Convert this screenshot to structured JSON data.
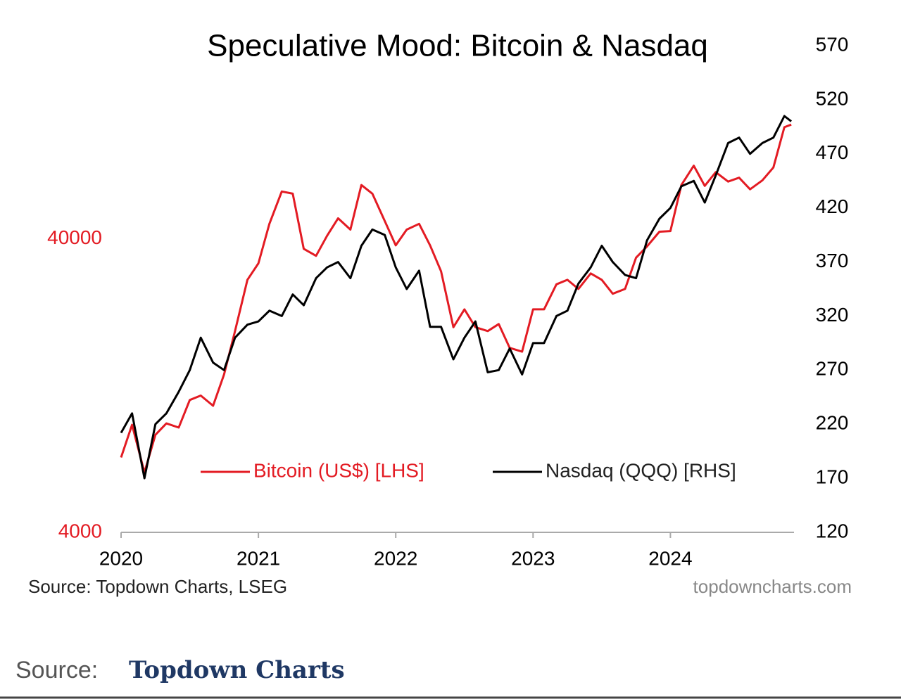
{
  "chart_data": {
    "type": "line",
    "title": "Speculative Mood: Bitcoin & Nasdaq",
    "source": "Source: Topdown Charts, LSEG",
    "watermark": "topdowncharts.com",
    "x": [
      2020.0,
      2020.08,
      2020.17,
      2020.25,
      2020.33,
      2020.42,
      2020.5,
      2020.58,
      2020.67,
      2020.75,
      2020.83,
      2020.92,
      2021.0,
      2021.08,
      2021.17,
      2021.25,
      2021.33,
      2021.42,
      2021.5,
      2021.58,
      2021.67,
      2021.75,
      2021.83,
      2021.92,
      2022.0,
      2022.08,
      2022.17,
      2022.25,
      2022.33,
      2022.42,
      2022.5,
      2022.58,
      2022.67,
      2022.75,
      2022.83,
      2022.92,
      2023.0,
      2023.08,
      2023.17,
      2023.25,
      2023.33,
      2023.42,
      2023.5,
      2023.58,
      2023.67,
      2023.75,
      2023.83,
      2023.92,
      2024.0,
      2024.08,
      2024.17,
      2024.25,
      2024.33,
      2024.42,
      2024.5,
      2024.58,
      2024.67,
      2024.75,
      2024.83,
      2024.88
    ],
    "series": [
      {
        "name": "Bitcoin (US$) [LHS]",
        "color": "#e31b23",
        "axis": "y",
        "values": [
          7200,
          9300,
          6400,
          8600,
          9400,
          9100,
          11300,
          11700,
          10800,
          13800,
          19400,
          29000,
          33000,
          45000,
          58000,
          57000,
          37000,
          35000,
          41000,
          47000,
          43000,
          61000,
          57000,
          46000,
          38000,
          43000,
          45000,
          38000,
          31000,
          20000,
          23000,
          20000,
          19400,
          20500,
          17000,
          16500,
          23000,
          23000,
          28000,
          29000,
          27000,
          30500,
          29000,
          26000,
          27000,
          34500,
          37700,
          42300,
          42500,
          61000,
          71000,
          60600,
          67500,
          62700,
          64600,
          59000,
          63300,
          70000,
          96000,
          98000
        ]
      },
      {
        "name": "Nasdaq (QQQ) [RHS]",
        "color": "#000000",
        "axis": "y2",
        "values": [
          212,
          230,
          170,
          220,
          230,
          250,
          270,
          300,
          277,
          270,
          300,
          312,
          315,
          325,
          320,
          340,
          330,
          355,
          365,
          370,
          355,
          385,
          400,
          395,
          365,
          345,
          362,
          310,
          310,
          280,
          300,
          315,
          268,
          270,
          290,
          266,
          295,
          295,
          320,
          325,
          350,
          365,
          385,
          370,
          358,
          355,
          390,
          410,
          420,
          440,
          445,
          425,
          450,
          480,
          485,
          470,
          480,
          485,
          505,
          500
        ]
      }
    ],
    "xlim": [
      2020,
      2024.9
    ],
    "xticks": [
      2020,
      2021,
      2022,
      2023,
      2024
    ],
    "ylim": [
      4000,
      182000
    ],
    "yticks": [
      4000,
      40000
    ],
    "ylog": true,
    "y2lim": [
      120,
      570
    ],
    "y2ticks": [
      120,
      170,
      220,
      270,
      320,
      370,
      420,
      470,
      520,
      570
    ],
    "grid": false,
    "legend": "center"
  },
  "footer": {
    "label": "Source:",
    "name": "Topdown Charts"
  }
}
